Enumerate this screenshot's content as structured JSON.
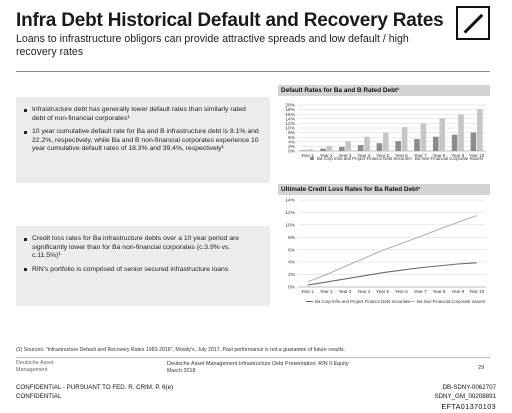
{
  "slide": {
    "title": "Infra Debt Historical Default and Recovery Rates",
    "subtitle": "Loans to infrastructure obligors can provide attractive spreads and low default / high recovery rates"
  },
  "box1": {
    "bullets": [
      "Infrastructure debt has generally lower default rates than similarly rated debt of non-financial corporates¹",
      "10 year cumulative default rate for Ba and B infrastructure debt is 8.1% and 22.2%, respectively, while Ba and B non-financial corporates experience 10 year cumulative default rates of 18.3% and 39.4%, respectively¹"
    ]
  },
  "box2": {
    "bullets": [
      "Credit loss rates for Ba infrastructure debts over a 10 year period are significantly lower than for Ba non-financial corporates (c.3.9% vs. c.11.5%)¹",
      "RIN's portfolio is comprised of senior secured infrastructure loans"
    ]
  },
  "chart_data": [
    {
      "type": "bar",
      "title": "Default Rates for Ba and B Rated Debt¹",
      "categories": [
        "Year 1",
        "Year 2",
        "Year 3",
        "Year 4",
        "Year 5",
        "Year 6",
        "Year 7",
        "Year 8",
        "Year 9",
        "Year 10"
      ],
      "yticks": [
        "20%",
        "18%",
        "16%",
        "14%",
        "12%",
        "10%",
        "8%",
        "6%",
        "4%",
        "2%",
        "0%"
      ],
      "ylim": [
        0,
        20
      ],
      "series": [
        {
          "name": "Ba Corp Infra and Project Finance Debt Securities",
          "color": "#8c8c8c",
          "values": [
            0.3,
            1.0,
            1.8,
            2.6,
            3.4,
            4.3,
            5.2,
            6.2,
            7.1,
            8.1
          ]
        },
        {
          "name": "Ba Non-Financial Corporate Issuers",
          "color": "#c6c6c6",
          "values": [
            0.8,
            2.2,
            4.3,
            6.2,
            8.0,
            10.4,
            12.0,
            14.3,
            15.8,
            18.3
          ]
        }
      ],
      "grid": true,
      "legend": "bottom"
    },
    {
      "type": "line",
      "title": "Ultimate Credit Loss Rates for Ba Rated Debt¹",
      "categories": [
        "Year 1",
        "Year 2",
        "Year 3",
        "Year 4",
        "Year 5",
        "Year 6",
        "Year 7",
        "Year 8",
        "Year 9",
        "Year 10"
      ],
      "yticks": [
        "14%",
        "12%",
        "10%",
        "8%",
        "6%",
        "4%",
        "2%",
        "0%"
      ],
      "ylim": [
        0,
        14
      ],
      "series": [
        {
          "name": "Ba Corp Infra and Project Finance Debt Securities",
          "color": "#6a6a6a",
          "values": [
            0.3,
            0.8,
            1.3,
            1.8,
            2.3,
            2.7,
            3.1,
            3.4,
            3.7,
            3.9
          ]
        },
        {
          "name": "Ba Non-Financial Corporate Issuers",
          "color": "#b2b2b2",
          "values": [
            0.8,
            2.0,
            3.3,
            4.6,
            5.9,
            7.0,
            8.1,
            9.3,
            10.4,
            11.5
          ]
        }
      ],
      "grid": true,
      "legend": "bottom"
    }
  ],
  "footer": {
    "footnote": "(1) Sources: \"Infrastructure Default and Recovery Rates 1983-2016\", Moody's, July 2017. Past performance is not a guarantee of future results.",
    "org": "Deutsche Asset Management",
    "presentation": "Deutsche Asset Management Infrastructure Debt Presentation: RIN II Equity",
    "date": "March 2018",
    "page": "29",
    "confidential_1": "CONFIDENTIAL - PURSUANT TO FED. R. CRIM. P. 6(e)",
    "confidential_2": "CONFIDENTIAL",
    "bates_1": "DB-SDNY-0062707",
    "bates_2": "SDNY_GM_00208891",
    "bates_3": "EFTA01370103"
  },
  "colors": {
    "grid": "#d6d6d6",
    "axis": "#7a7a7a",
    "box": "#ececec",
    "header": "#d3d3d3"
  }
}
